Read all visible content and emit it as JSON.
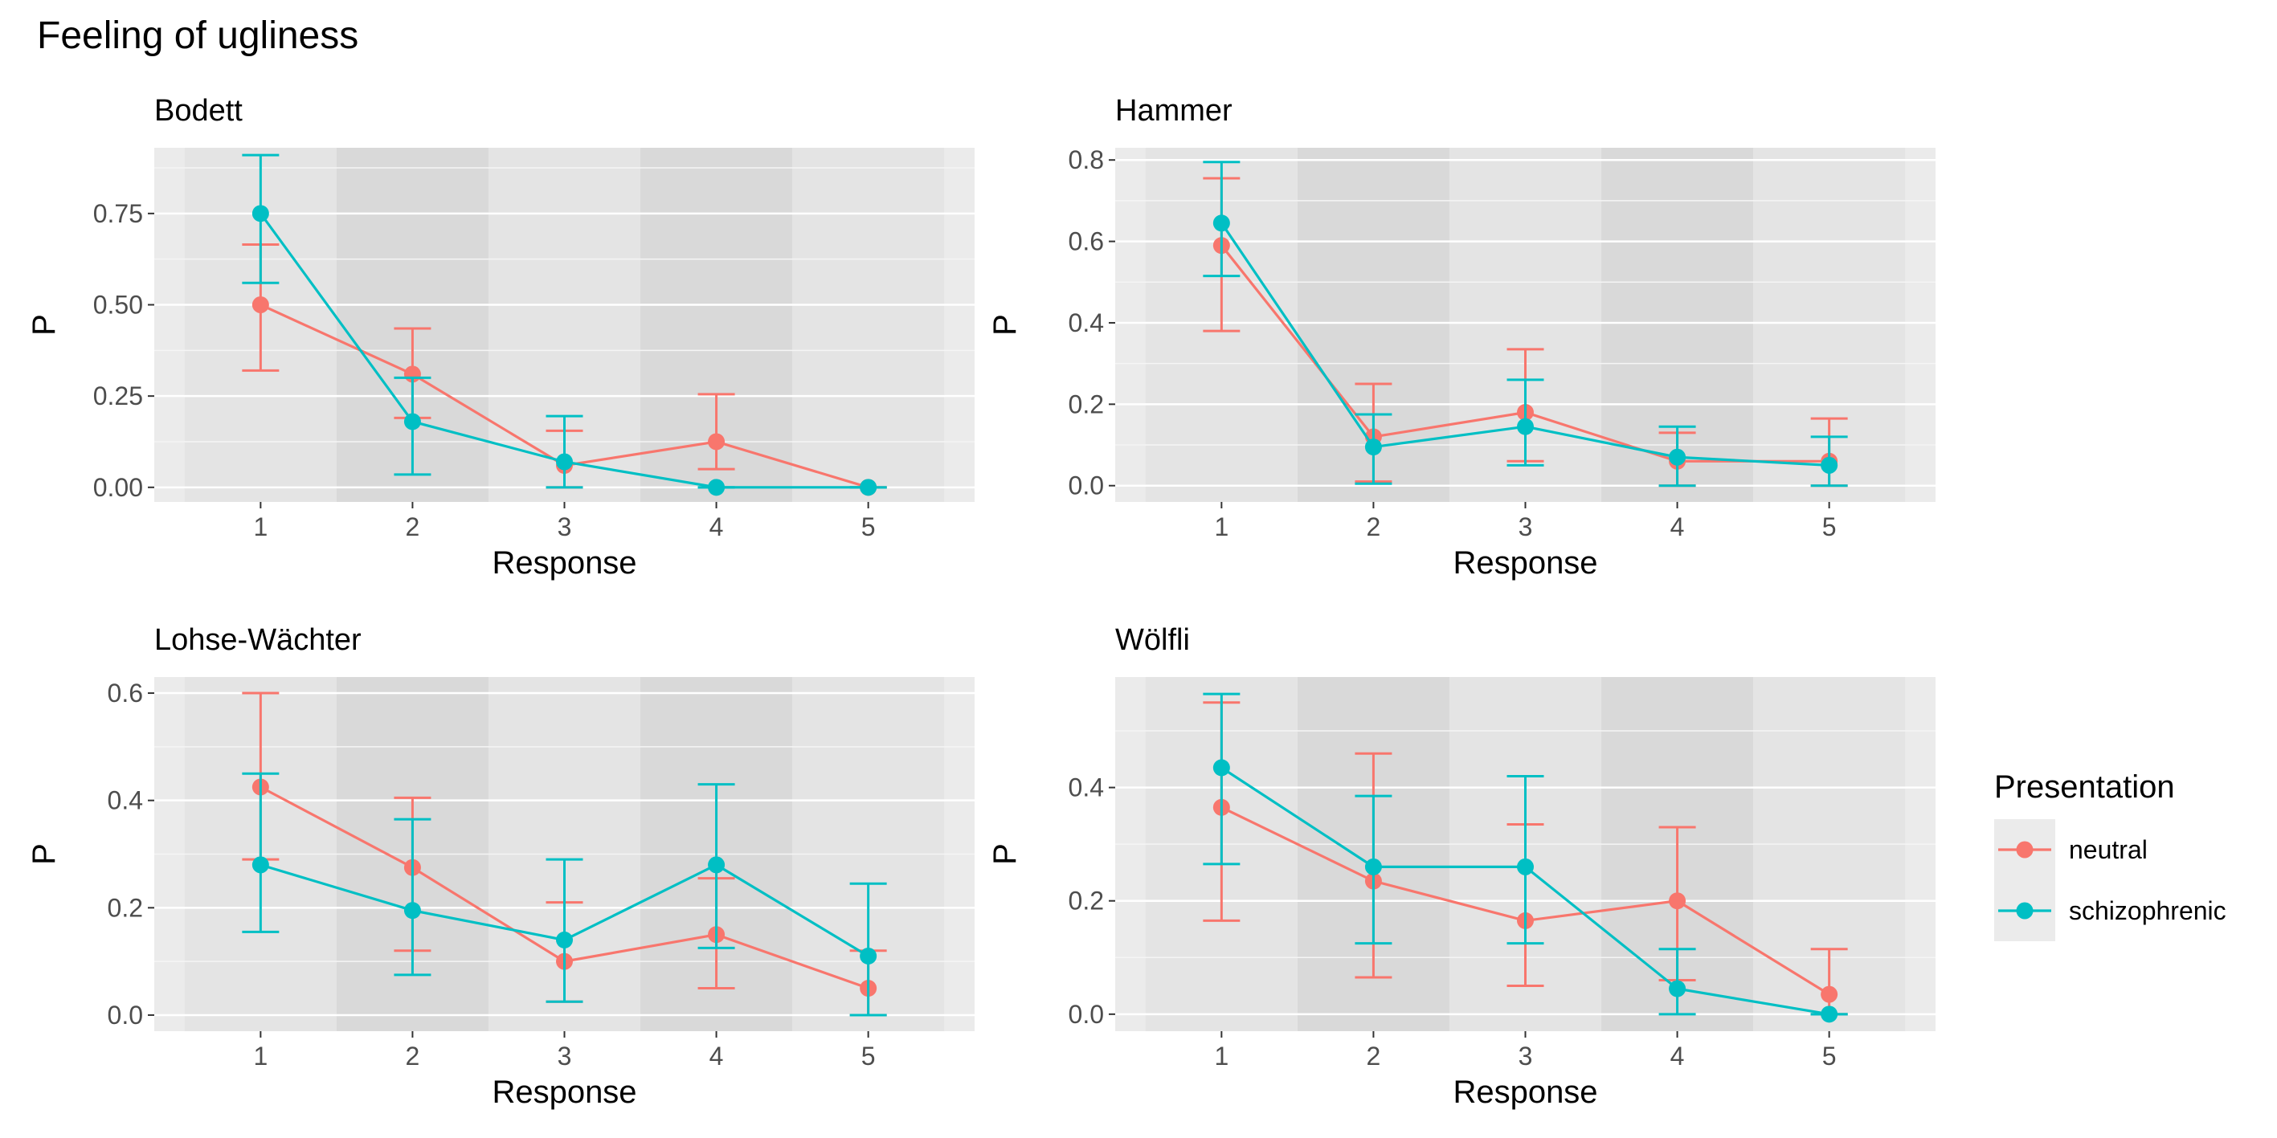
{
  "chart_data": {
    "type": "line",
    "title": "Feeling of ugliness",
    "legend": {
      "title": "Presentation",
      "position": "right",
      "entries": [
        {
          "name": "neutral",
          "color": "#F8766D"
        },
        {
          "name": "schizophrenic",
          "color": "#00BFC4"
        }
      ]
    },
    "panels": [
      {
        "title": "Bodett",
        "xlabel": "Response",
        "ylabel": "P",
        "categories": [
          "1",
          "2",
          "3",
          "4",
          "5"
        ],
        "ylim": [
          -0.04,
          0.93
        ],
        "yticks": [
          0.0,
          0.25,
          0.5,
          0.75
        ],
        "ytick_labels": [
          "0.00",
          "0.25",
          "0.50",
          "0.75"
        ],
        "series": [
          {
            "name": "neutral",
            "values": [
              0.5,
              0.31,
              0.06,
              0.125,
              0.0
            ],
            "lower": [
              0.32,
              0.19,
              0.0,
              0.05,
              0.0
            ],
            "upper": [
              0.665,
              0.435,
              0.155,
              0.255,
              0.0
            ]
          },
          {
            "name": "schizophrenic",
            "values": [
              0.75,
              0.18,
              0.07,
              0.0,
              0.0
            ],
            "lower": [
              0.56,
              0.035,
              0.0,
              0.0,
              0.0
            ],
            "upper": [
              0.91,
              0.3,
              0.195,
              0.0,
              0.0
            ]
          }
        ]
      },
      {
        "title": "Hammer",
        "xlabel": "Response",
        "ylabel": "P",
        "categories": [
          "1",
          "2",
          "3",
          "4",
          "5"
        ],
        "ylim": [
          -0.04,
          0.83
        ],
        "yticks": [
          0.0,
          0.2,
          0.4,
          0.6,
          0.8
        ],
        "ytick_labels": [
          "0.0",
          "0.2",
          "0.4",
          "0.6",
          "0.8"
        ],
        "series": [
          {
            "name": "neutral",
            "values": [
              0.59,
              0.12,
              0.18,
              0.06,
              0.06
            ],
            "lower": [
              0.38,
              0.01,
              0.06,
              0.0,
              0.0
            ],
            "upper": [
              0.755,
              0.25,
              0.335,
              0.13,
              0.165
            ]
          },
          {
            "name": "schizophrenic",
            "values": [
              0.645,
              0.095,
              0.145,
              0.07,
              0.05
            ],
            "lower": [
              0.515,
              0.005,
              0.05,
              0.0,
              0.0
            ],
            "upper": [
              0.795,
              0.175,
              0.26,
              0.145,
              0.12
            ]
          }
        ]
      },
      {
        "title": "Lohse-Wächter",
        "xlabel": "Response",
        "ylabel": "P",
        "categories": [
          "1",
          "2",
          "3",
          "4",
          "5"
        ],
        "ylim": [
          -0.03,
          0.63
        ],
        "yticks": [
          0.0,
          0.2,
          0.4,
          0.6
        ],
        "ytick_labels": [
          "0.0",
          "0.2",
          "0.4",
          "0.6"
        ],
        "series": [
          {
            "name": "neutral",
            "values": [
              0.425,
              0.275,
              0.1,
              0.15,
              0.05
            ],
            "lower": [
              0.29,
              0.12,
              0.025,
              0.05,
              0.0
            ],
            "upper": [
              0.6,
              0.405,
              0.21,
              0.255,
              0.12
            ]
          },
          {
            "name": "schizophrenic",
            "values": [
              0.28,
              0.195,
              0.14,
              0.28,
              0.11
            ],
            "lower": [
              0.155,
              0.075,
              0.025,
              0.125,
              0.0
            ],
            "upper": [
              0.45,
              0.365,
              0.29,
              0.43,
              0.245
            ]
          }
        ]
      },
      {
        "title": "Wölfli",
        "xlabel": "Response",
        "ylabel": "P",
        "categories": [
          "1",
          "2",
          "3",
          "4",
          "5"
        ],
        "ylim": [
          -0.03,
          0.595
        ],
        "yticks": [
          0.0,
          0.2,
          0.4
        ],
        "ytick_labels": [
          "0.0",
          "0.2",
          "0.4"
        ],
        "series": [
          {
            "name": "neutral",
            "values": [
              0.365,
              0.235,
              0.165,
              0.2,
              0.035
            ],
            "lower": [
              0.165,
              0.065,
              0.05,
              0.06,
              0.0
            ],
            "upper": [
              0.55,
              0.46,
              0.335,
              0.33,
              0.115
            ]
          },
          {
            "name": "schizophrenic",
            "values": [
              0.435,
              0.26,
              0.26,
              0.045,
              0.0
            ],
            "lower": [
              0.265,
              0.125,
              0.125,
              0.0,
              0.0
            ],
            "upper": [
              0.565,
              0.385,
              0.42,
              0.115,
              0.0
            ]
          }
        ]
      }
    ]
  }
}
